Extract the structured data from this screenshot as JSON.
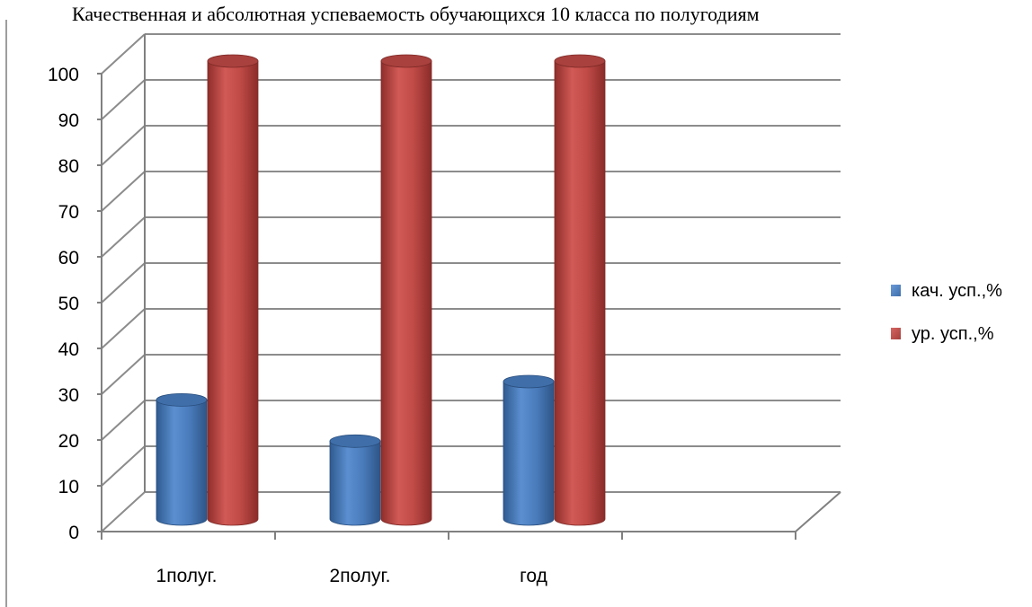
{
  "chart_data": {
    "type": "bar",
    "title": "Качественная и абсолютная успеваемость обучающихся 10 класса по     полугодиям",
    "categories": [
      "1полуг.",
      "2полуг.",
      "год",
      ""
    ],
    "series": [
      {
        "name": "кач. усп.,%",
        "values": [
          26,
          17,
          30,
          null
        ]
      },
      {
        "name": "ур. усп.,%",
        "values": [
          100,
          100,
          100,
          null
        ]
      }
    ],
    "y_ticks": [
      "0",
      "10",
      "20",
      "30",
      "40",
      "50",
      "60",
      "70",
      "80",
      "90",
      "100"
    ],
    "ylim": [
      0,
      100
    ],
    "grid": true,
    "legend_position": "right",
    "colors": {
      "series1": "#4F81BD",
      "series2": "#C0504D",
      "gridline": "#8C8C8C",
      "axis": "#808080"
    }
  }
}
